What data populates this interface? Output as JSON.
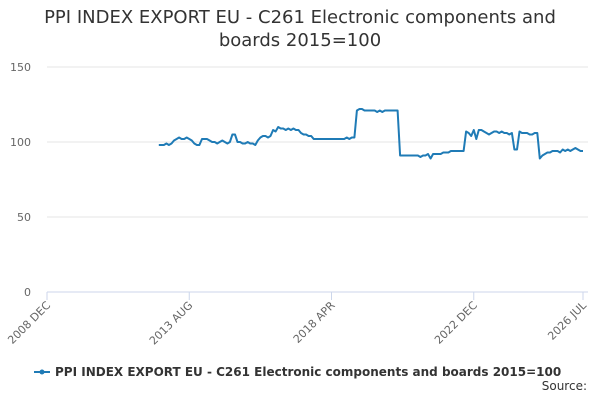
{
  "chart_data": {
    "type": "line",
    "title": "PPI INDEX EXPORT EU - C261 Electronic components and boards 2015=100",
    "source": "Source:",
    "xlim": [
      "2008-12",
      "2026-07"
    ],
    "xticks": [
      {
        "value": "2008-12",
        "label": "2008 DEC"
      },
      {
        "value": "2013-08",
        "label": "2013 AUG"
      },
      {
        "value": "2018-04",
        "label": "2018 APR"
      },
      {
        "value": "2022-12",
        "label": "2022 DEC"
      },
      {
        "value": "2026-07",
        "label": "2026 JUL"
      }
    ],
    "ylim": [
      0,
      150
    ],
    "yticks": [
      0,
      50,
      100,
      150
    ],
    "grid": true,
    "legend": "bottom",
    "x": [
      "2012-08",
      "2012-09",
      "2012-10",
      "2012-11",
      "2012-12",
      "2013-01",
      "2013-02",
      "2013-03",
      "2013-04",
      "2013-05",
      "2013-06",
      "2013-07",
      "2013-08",
      "2013-09",
      "2013-10",
      "2013-11",
      "2013-12",
      "2014-01",
      "2014-02",
      "2014-03",
      "2014-04",
      "2014-05",
      "2014-06",
      "2014-07",
      "2014-08",
      "2014-09",
      "2014-10",
      "2014-11",
      "2014-12",
      "2015-01",
      "2015-02",
      "2015-03",
      "2015-04",
      "2015-05",
      "2015-06",
      "2015-07",
      "2015-08",
      "2015-09",
      "2015-10",
      "2015-11",
      "2015-12",
      "2016-01",
      "2016-02",
      "2016-03",
      "2016-04",
      "2016-05",
      "2016-06",
      "2016-07",
      "2016-08",
      "2016-09",
      "2016-10",
      "2016-11",
      "2016-12",
      "2017-01",
      "2017-02",
      "2017-03",
      "2017-04",
      "2017-05",
      "2017-06",
      "2017-07",
      "2017-08",
      "2017-09",
      "2017-10",
      "2017-11",
      "2017-12",
      "2018-01",
      "2018-02",
      "2018-03",
      "2018-04",
      "2018-05",
      "2018-06",
      "2018-07",
      "2018-08",
      "2018-09",
      "2018-10",
      "2018-11",
      "2018-12",
      "2019-01",
      "2019-02",
      "2019-03",
      "2019-04",
      "2019-05",
      "2019-06",
      "2019-07",
      "2019-08",
      "2019-09",
      "2019-10",
      "2019-11",
      "2019-12",
      "2020-01",
      "2020-02",
      "2020-03",
      "2020-04",
      "2020-05",
      "2020-06",
      "2020-07",
      "2020-08",
      "2020-09",
      "2020-10",
      "2020-11",
      "2020-12",
      "2021-01",
      "2021-02",
      "2021-03",
      "2021-04",
      "2021-05",
      "2021-06",
      "2021-07",
      "2021-08",
      "2021-09",
      "2021-10",
      "2021-11",
      "2021-12",
      "2022-01",
      "2022-02",
      "2022-03",
      "2022-04",
      "2022-05",
      "2022-06",
      "2022-07",
      "2022-08",
      "2022-09",
      "2022-10",
      "2022-11",
      "2022-12",
      "2023-01",
      "2023-02",
      "2023-03",
      "2023-04",
      "2023-05",
      "2023-06",
      "2023-07",
      "2023-08",
      "2023-09",
      "2023-10",
      "2023-11",
      "2023-12",
      "2024-01",
      "2024-02",
      "2024-03",
      "2024-04",
      "2024-05",
      "2024-06",
      "2024-07",
      "2024-08",
      "2024-09",
      "2024-10",
      "2024-11",
      "2024-12",
      "2025-01",
      "2025-02",
      "2025-03",
      "2025-04",
      "2025-05",
      "2025-06",
      "2025-07",
      "2025-08",
      "2025-09",
      "2025-10",
      "2025-11",
      "2025-12",
      "2026-01",
      "2026-02",
      "2026-03",
      "2026-04",
      "2026-05",
      "2026-06",
      "2026-07"
    ],
    "series": [
      {
        "name": "PPI INDEX EXPORT EU - C261 Electronic components and boards 2015=100",
        "color": "#1f7bb6",
        "values": [
          98,
          98,
          98,
          99,
          98,
          99,
          101,
          102,
          103,
          102,
          102,
          103,
          102,
          101,
          99,
          98,
          98,
          102,
          102,
          102,
          101,
          100,
          100,
          99,
          100,
          101,
          100,
          99,
          100,
          105,
          105,
          100,
          100,
          99,
          99,
          100,
          99,
          99,
          98,
          101,
          103,
          104,
          104,
          103,
          104,
          108,
          107,
          110,
          109,
          109,
          108,
          109,
          108,
          109,
          108,
          108,
          106,
          105,
          105,
          104,
          104,
          102,
          102,
          102,
          102,
          102,
          102,
          102,
          102,
          102,
          102,
          102,
          102,
          102,
          103,
          102,
          103,
          103,
          121,
          122,
          122,
          121,
          121,
          121,
          121,
          121,
          120,
          121,
          120,
          121,
          121,
          121,
          121,
          121,
          121,
          91,
          91,
          91,
          91,
          91,
          91,
          91,
          91,
          90,
          91,
          91,
          92,
          89,
          92,
          92,
          92,
          92,
          93,
          93,
          93,
          94,
          94,
          94,
          94,
          94,
          94,
          107,
          106,
          104,
          108,
          102,
          108,
          108,
          107,
          106,
          105,
          106,
          107,
          107,
          106,
          107,
          106,
          106,
          105,
          106,
          95,
          95,
          107,
          106,
          106,
          106,
          105,
          105,
          106,
          106,
          89,
          91,
          92,
          93,
          93,
          94,
          94,
          94,
          93,
          95,
          94,
          95,
          94,
          95,
          96,
          95,
          94,
          94
        ]
      }
    ]
  }
}
